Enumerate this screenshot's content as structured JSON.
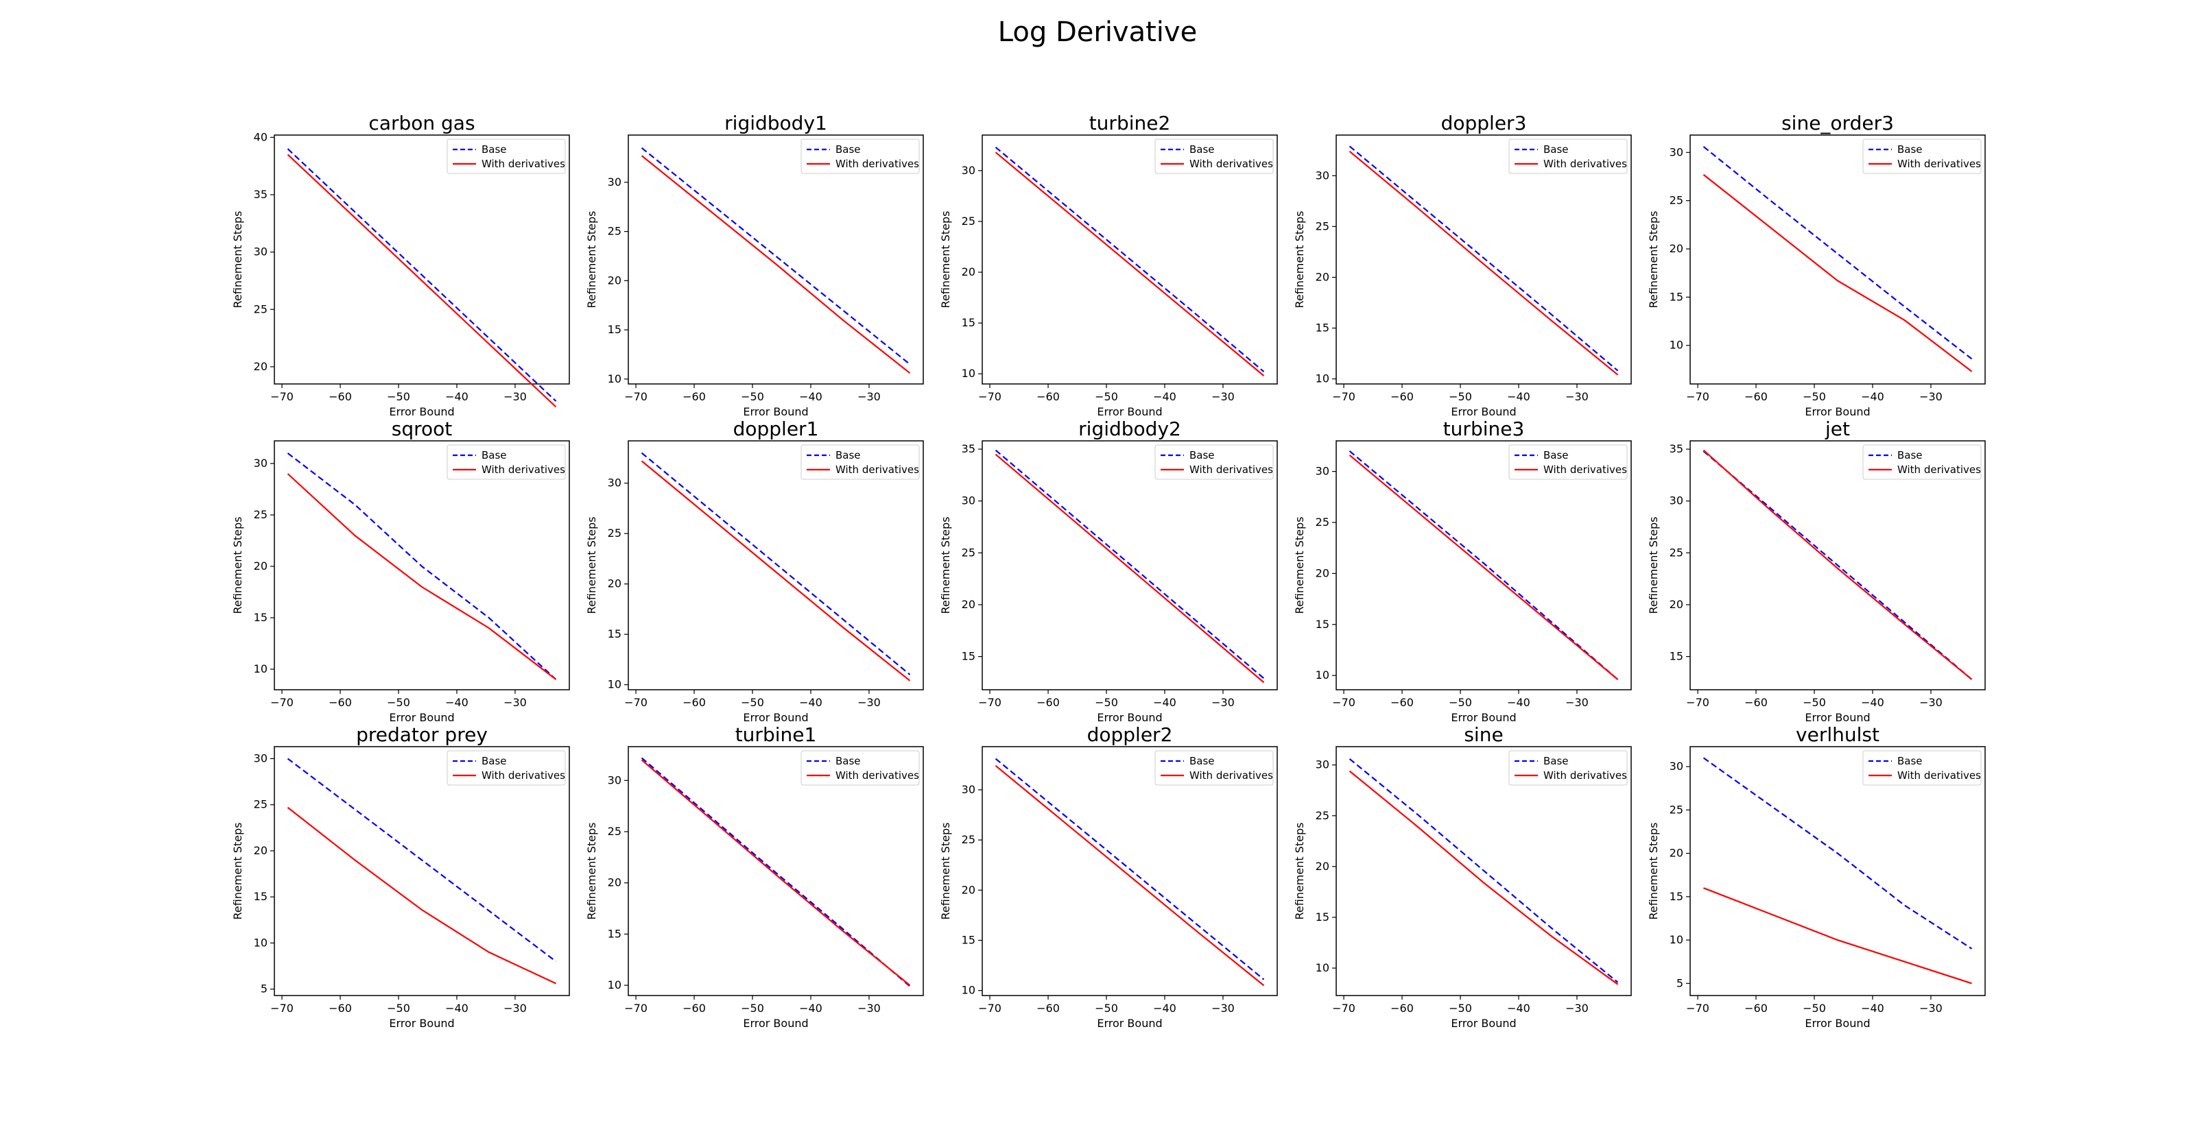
{
  "title": "Log Derivative",
  "legend_position": "upper right",
  "colors": {
    "base": "#0000ff",
    "with_derivatives": "#ff0000"
  },
  "chart_data": [
    {
      "type": "line",
      "title": "carbon gas",
      "xlabel": "Error Bound",
      "ylabel": "Refinement Steps",
      "x": [
        -69,
        -57.5,
        -46,
        -34.5,
        -23
      ],
      "xticks": [
        -70,
        -60,
        -50,
        -40,
        -30
      ],
      "yticks": [
        20,
        25,
        30,
        35,
        40
      ],
      "ylim": [
        18.5,
        40.2
      ],
      "series": [
        {
          "name": "Base",
          "values": [
            39.0,
            33.5,
            28.0,
            22.5,
            17.0
          ]
        },
        {
          "name": "With derivatives",
          "values": [
            38.5,
            33.0,
            27.5,
            22.0,
            16.5
          ]
        }
      ]
    },
    {
      "type": "line",
      "title": "rigidbody1",
      "xlabel": "Error Bound",
      "ylabel": "Refinement Steps",
      "x": [
        -69,
        -57.5,
        -46,
        -34.5,
        -23
      ],
      "xticks": [
        -70,
        -60,
        -50,
        -40,
        -30
      ],
      "yticks": [
        10,
        15,
        20,
        25,
        30
      ],
      "ylim": [
        9.5,
        34.8
      ],
      "series": [
        {
          "name": "Base",
          "values": [
            33.5,
            28.0,
            22.5,
            17.0,
            11.5
          ]
        },
        {
          "name": "With derivatives",
          "values": [
            32.7,
            27.2,
            21.7,
            16.0,
            10.6
          ]
        }
      ]
    },
    {
      "type": "line",
      "title": "turbine2",
      "xlabel": "Error Bound",
      "ylabel": "Refinement Steps",
      "x": [
        -69,
        -57.5,
        -46,
        -34.5,
        -23
      ],
      "xticks": [
        -70,
        -60,
        -50,
        -40,
        -30
      ],
      "yticks": [
        10,
        15,
        20,
        25,
        30
      ],
      "ylim": [
        9.0,
        33.5
      ],
      "series": [
        {
          "name": "Base",
          "values": [
            32.3,
            26.8,
            21.3,
            15.8,
            10.2
          ]
        },
        {
          "name": "With derivatives",
          "values": [
            31.8,
            26.3,
            20.8,
            15.3,
            9.8
          ]
        }
      ]
    },
    {
      "type": "line",
      "title": "doppler3",
      "xlabel": "Error Bound",
      "ylabel": "Refinement Steps",
      "x": [
        -69,
        -57.5,
        -46,
        -34.5,
        -23
      ],
      "xticks": [
        -70,
        -60,
        -50,
        -40,
        -30
      ],
      "yticks": [
        10,
        15,
        20,
        25,
        30
      ],
      "ylim": [
        9.5,
        34.0
      ],
      "series": [
        {
          "name": "Base",
          "values": [
            32.9,
            27.4,
            21.9,
            16.4,
            10.8
          ]
        },
        {
          "name": "With derivatives",
          "values": [
            32.4,
            26.9,
            21.3,
            15.8,
            10.4
          ]
        }
      ]
    },
    {
      "type": "line",
      "title": "sine_order3",
      "xlabel": "Error Bound",
      "ylabel": "Refinement Steps",
      "x": [
        -69,
        -57.5,
        -46,
        -34.5,
        -23
      ],
      "xticks": [
        -70,
        -60,
        -50,
        -40,
        -30
      ],
      "yticks": [
        10,
        15,
        20,
        25,
        30
      ],
      "ylim": [
        6.0,
        31.8
      ],
      "series": [
        {
          "name": "Base",
          "values": [
            30.6,
            25.0,
            19.5,
            14.0,
            8.6
          ]
        },
        {
          "name": "With derivatives",
          "values": [
            27.7,
            22.2,
            16.7,
            12.6,
            7.3
          ]
        }
      ]
    },
    {
      "type": "line",
      "title": "sqroot",
      "xlabel": "Error Bound",
      "ylabel": "Refinement Steps",
      "x": [
        -69,
        -57.5,
        -46,
        -34.5,
        -23
      ],
      "xticks": [
        -70,
        -60,
        -50,
        -40,
        -30
      ],
      "yticks": [
        10,
        15,
        20,
        25,
        30
      ],
      "ylim": [
        8.0,
        32.2
      ],
      "series": [
        {
          "name": "Base",
          "values": [
            31.0,
            26.0,
            20.0,
            15.0,
            9.0
          ]
        },
        {
          "name": "With derivatives",
          "values": [
            29.0,
            23.0,
            18.0,
            14.0,
            9.0
          ]
        }
      ]
    },
    {
      "type": "line",
      "title": "doppler1",
      "xlabel": "Error Bound",
      "ylabel": "Refinement Steps",
      "x": [
        -69,
        -57.5,
        -46,
        -34.5,
        -23
      ],
      "xticks": [
        -70,
        -60,
        -50,
        -40,
        -30
      ],
      "yticks": [
        10,
        15,
        20,
        25,
        30
      ],
      "ylim": [
        9.5,
        34.2
      ],
      "series": [
        {
          "name": "Base",
          "values": [
            33.0,
            27.5,
            22.0,
            16.5,
            11.0
          ]
        },
        {
          "name": "With derivatives",
          "values": [
            32.2,
            26.7,
            21.2,
            15.7,
            10.4
          ]
        }
      ]
    },
    {
      "type": "line",
      "title": "rigidbody2",
      "xlabel": "Error Bound",
      "ylabel": "Refinement Steps",
      "x": [
        -69,
        -57.5,
        -46,
        -34.5,
        -23
      ],
      "xticks": [
        -70,
        -60,
        -50,
        -40,
        -30
      ],
      "yticks": [
        15,
        20,
        25,
        30,
        35
      ],
      "ylim": [
        11.8,
        35.8
      ],
      "series": [
        {
          "name": "Base",
          "values": [
            34.9,
            29.4,
            23.9,
            18.4,
            12.9
          ]
        },
        {
          "name": "With derivatives",
          "values": [
            34.5,
            29.0,
            23.5,
            18.0,
            12.5
          ]
        }
      ]
    },
    {
      "type": "line",
      "title": "turbine3",
      "xlabel": "Error Bound",
      "ylabel": "Refinement Steps",
      "x": [
        -69,
        -57.5,
        -46,
        -34.5,
        -23
      ],
      "xticks": [
        -70,
        -60,
        -50,
        -40,
        -30
      ],
      "yticks": [
        10,
        15,
        20,
        25,
        30
      ],
      "ylim": [
        8.6,
        33.0
      ],
      "series": [
        {
          "name": "Base",
          "values": [
            32.0,
            26.5,
            21.0,
            15.3,
            9.6
          ]
        },
        {
          "name": "With derivatives",
          "values": [
            31.6,
            26.1,
            20.6,
            15.1,
            9.6
          ]
        }
      ]
    },
    {
      "type": "line",
      "title": "jet",
      "xlabel": "Error Bound",
      "ylabel": "Refinement Steps",
      "x": [
        -69,
        -57.5,
        -46,
        -34.5,
        -23
      ],
      "xticks": [
        -70,
        -60,
        -50,
        -40,
        -30
      ],
      "yticks": [
        15,
        20,
        25,
        30,
        35
      ],
      "ylim": [
        11.8,
        35.8
      ],
      "series": [
        {
          "name": "Base",
          "values": [
            34.8,
            29.3,
            23.8,
            18.3,
            12.8
          ]
        },
        {
          "name": "With derivatives",
          "values": [
            34.9,
            29.1,
            23.5,
            18.1,
            12.8
          ]
        }
      ]
    },
    {
      "type": "line",
      "title": "predator prey",
      "xlabel": "Error Bound",
      "ylabel": "Refinement Steps",
      "x": [
        -69,
        -57.5,
        -46,
        -34.5,
        -23
      ],
      "xticks": [
        -70,
        -60,
        -50,
        -40,
        -30
      ],
      "yticks": [
        5,
        10,
        15,
        20,
        25,
        30
      ],
      "ylim": [
        4.3,
        31.3
      ],
      "series": [
        {
          "name": "Base",
          "values": [
            30.0,
            24.5,
            19.0,
            13.5,
            8.0
          ]
        },
        {
          "name": "With derivatives",
          "values": [
            24.7,
            19.0,
            13.6,
            9.0,
            5.6
          ]
        }
      ]
    },
    {
      "type": "line",
      "title": "turbine1",
      "xlabel": "Error Bound",
      "ylabel": "Refinement Steps",
      "x": [
        -69,
        -57.5,
        -46,
        -34.5,
        -23
      ],
      "xticks": [
        -70,
        -60,
        -50,
        -40,
        -30
      ],
      "yticks": [
        10,
        15,
        20,
        25,
        30
      ],
      "ylim": [
        9.0,
        33.3
      ],
      "series": [
        {
          "name": "Base",
          "values": [
            32.2,
            26.6,
            21.0,
            15.5,
            9.9
          ]
        },
        {
          "name": "With derivatives",
          "values": [
            32.0,
            26.4,
            20.8,
            15.3,
            10.0
          ]
        }
      ]
    },
    {
      "type": "line",
      "title": "doppler2",
      "xlabel": "Error Bound",
      "ylabel": "Refinement Steps",
      "x": [
        -69,
        -57.5,
        -46,
        -34.5,
        -23
      ],
      "xticks": [
        -70,
        -60,
        -50,
        -40,
        -30
      ],
      "yticks": [
        10,
        15,
        20,
        25,
        30
      ],
      "ylim": [
        9.5,
        34.3
      ],
      "series": [
        {
          "name": "Base",
          "values": [
            33.1,
            27.6,
            22.1,
            16.6,
            11.1
          ]
        },
        {
          "name": "With derivatives",
          "values": [
            32.4,
            26.9,
            21.4,
            15.9,
            10.5
          ]
        }
      ]
    },
    {
      "type": "line",
      "title": "sine",
      "xlabel": "Error Bound",
      "ylabel": "Refinement Steps",
      "x": [
        -69,
        -57.5,
        -46,
        -34.5,
        -23
      ],
      "xticks": [
        -70,
        -60,
        -50,
        -40,
        -30
      ],
      "yticks": [
        10,
        15,
        20,
        25,
        30
      ],
      "ylim": [
        7.3,
        31.8
      ],
      "series": [
        {
          "name": "Base",
          "values": [
            30.6,
            25.2,
            19.6,
            14.0,
            8.6
          ]
        },
        {
          "name": "With derivatives",
          "values": [
            29.4,
            24.0,
            18.4,
            13.2,
            8.4
          ]
        }
      ]
    },
    {
      "type": "line",
      "title": "verlhulst",
      "xlabel": "Error Bound",
      "ylabel": "Refinement Steps",
      "x": [
        -69,
        -57.5,
        -46,
        -34.5,
        -23
      ],
      "xticks": [
        -70,
        -60,
        -50,
        -40,
        -30
      ],
      "yticks": [
        5,
        10,
        15,
        20,
        25,
        30
      ],
      "ylim": [
        3.6,
        32.3
      ],
      "series": [
        {
          "name": "Base",
          "values": [
            31.0,
            25.5,
            20.0,
            14.0,
            9.0
          ]
        },
        {
          "name": "With derivatives",
          "values": [
            16.0,
            13.0,
            10.0,
            7.5,
            5.0
          ]
        }
      ]
    }
  ]
}
